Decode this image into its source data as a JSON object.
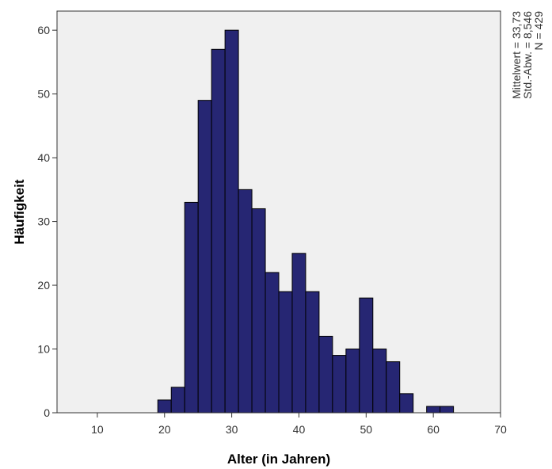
{
  "chart_data": {
    "type": "bar",
    "subtype": "histogram",
    "xlabel": "Alter (in Jahren)",
    "ylabel": "Häufigkeit",
    "xlim": [
      4,
      70
    ],
    "ylim": [
      0,
      63
    ],
    "xticks": [
      10,
      20,
      30,
      40,
      50,
      60,
      70
    ],
    "yticks": [
      0,
      10,
      20,
      30,
      40,
      50,
      60
    ],
    "bin_width": 2,
    "bins": [
      {
        "start": 19,
        "end": 21,
        "value": 2
      },
      {
        "start": 21,
        "end": 23,
        "value": 4
      },
      {
        "start": 23,
        "end": 25,
        "value": 33
      },
      {
        "start": 25,
        "end": 27,
        "value": 49
      },
      {
        "start": 27,
        "end": 29,
        "value": 57
      },
      {
        "start": 29,
        "end": 31,
        "value": 60
      },
      {
        "start": 31,
        "end": 33,
        "value": 35
      },
      {
        "start": 33,
        "end": 35,
        "value": 32
      },
      {
        "start": 35,
        "end": 37,
        "value": 22
      },
      {
        "start": 37,
        "end": 39,
        "value": 19
      },
      {
        "start": 39,
        "end": 41,
        "value": 25
      },
      {
        "start": 41,
        "end": 43,
        "value": 19
      },
      {
        "start": 43,
        "end": 45,
        "value": 12
      },
      {
        "start": 45,
        "end": 47,
        "value": 9
      },
      {
        "start": 47,
        "end": 49,
        "value": 10
      },
      {
        "start": 49,
        "end": 51,
        "value": 18
      },
      {
        "start": 51,
        "end": 53,
        "value": 10
      },
      {
        "start": 53,
        "end": 55,
        "value": 8
      },
      {
        "start": 55,
        "end": 57,
        "value": 3
      },
      {
        "start": 59,
        "end": 61,
        "value": 1
      },
      {
        "start": 61,
        "end": 63,
        "value": 1
      }
    ],
    "stats": [
      "Mittelwert = 33,73",
      "Std.-Abw. = 8,546",
      "N = 429"
    ],
    "grid": false,
    "colors": {
      "bar_fill": "#262673",
      "bar_stroke": "#000000",
      "plot_bg": "#f0f0f0",
      "page_bg": "#ffffff"
    }
  }
}
